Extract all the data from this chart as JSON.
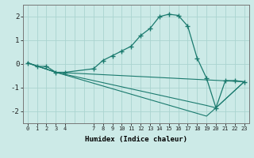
{
  "xlabel": "Humidex (Indice chaleur)",
  "bg_color": "#cceae7",
  "grid_color": "#aad4d0",
  "line_color": "#1a7a6e",
  "xlim": [
    -0.5,
    23.5
  ],
  "ylim": [
    -2.5,
    2.5
  ],
  "xticks": [
    0,
    1,
    2,
    3,
    4,
    7,
    8,
    9,
    10,
    11,
    12,
    13,
    14,
    15,
    16,
    17,
    18,
    19,
    20,
    21,
    22,
    23
  ],
  "yticks": [
    -2,
    -1,
    0,
    1,
    2
  ],
  "lines": [
    {
      "x": [
        0,
        1,
        2,
        3,
        4,
        7,
        8,
        9,
        10,
        11,
        12,
        13,
        14,
        15,
        16,
        17,
        18,
        19,
        20,
        21,
        22,
        23
      ],
      "y": [
        0.05,
        -0.1,
        -0.1,
        -0.35,
        -0.35,
        -0.2,
        0.15,
        0.35,
        0.55,
        0.75,
        1.2,
        1.5,
        2.0,
        2.1,
        2.05,
        1.6,
        0.25,
        -0.6,
        -1.85,
        -0.7,
        -0.7,
        -0.75
      ],
      "marker": "+"
    },
    {
      "x": [
        0,
        3,
        23
      ],
      "y": [
        0.05,
        -0.35,
        -0.75
      ],
      "marker": null
    },
    {
      "x": [
        0,
        3,
        19,
        20,
        23
      ],
      "y": [
        0.05,
        -0.35,
        -1.75,
        -1.85,
        -0.75
      ],
      "marker": null
    },
    {
      "x": [
        0,
        3,
        19,
        20,
        23
      ],
      "y": [
        0.05,
        -0.35,
        -2.2,
        -1.85,
        -0.75
      ],
      "marker": null
    }
  ]
}
